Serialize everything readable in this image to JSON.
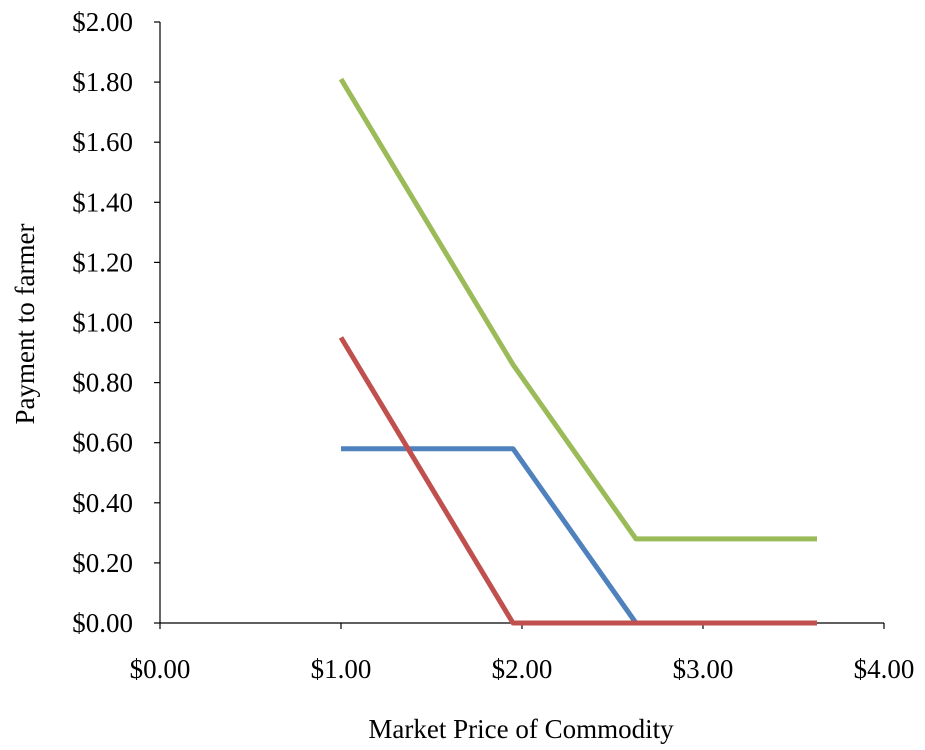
{
  "chart_data": {
    "type": "line",
    "title": "",
    "xlabel": "Market Price of Commodity",
    "ylabel": "Payment to farmer",
    "xlim": [
      0,
      4
    ],
    "ylim": [
      0,
      2
    ],
    "x_ticks": [
      0,
      1,
      2,
      3,
      4
    ],
    "y_ticks": [
      0,
      0.2,
      0.4,
      0.6,
      0.8,
      1.0,
      1.2,
      1.4,
      1.6,
      1.8,
      2.0
    ],
    "x_tick_labels": [
      "$0.00",
      "$1.00",
      "$2.00",
      "$3.00",
      "$4.00"
    ],
    "y_tick_labels": [
      "$0.00",
      "$0.20",
      "$0.40",
      "$0.60",
      "$0.80",
      "$1.00",
      "$1.20",
      "$1.40",
      "$1.60",
      "$1.80",
      "$2.00"
    ],
    "grid": false,
    "legend": "none",
    "series": [
      {
        "color": "#4F81BD",
        "points": [
          [
            1.0,
            0.58
          ],
          [
            1.95,
            0.58
          ],
          [
            2.63,
            0.0
          ],
          [
            3.63,
            0.0
          ]
        ]
      },
      {
        "color": "#C0504D",
        "points": [
          [
            1.0,
            0.95
          ],
          [
            1.95,
            0.0
          ],
          [
            3.63,
            0.0
          ]
        ]
      },
      {
        "color": "#9BBB59",
        "points": [
          [
            1.0,
            1.81
          ],
          [
            1.95,
            0.86
          ],
          [
            2.63,
            0.28
          ],
          [
            3.63,
            0.28
          ]
        ]
      }
    ]
  }
}
